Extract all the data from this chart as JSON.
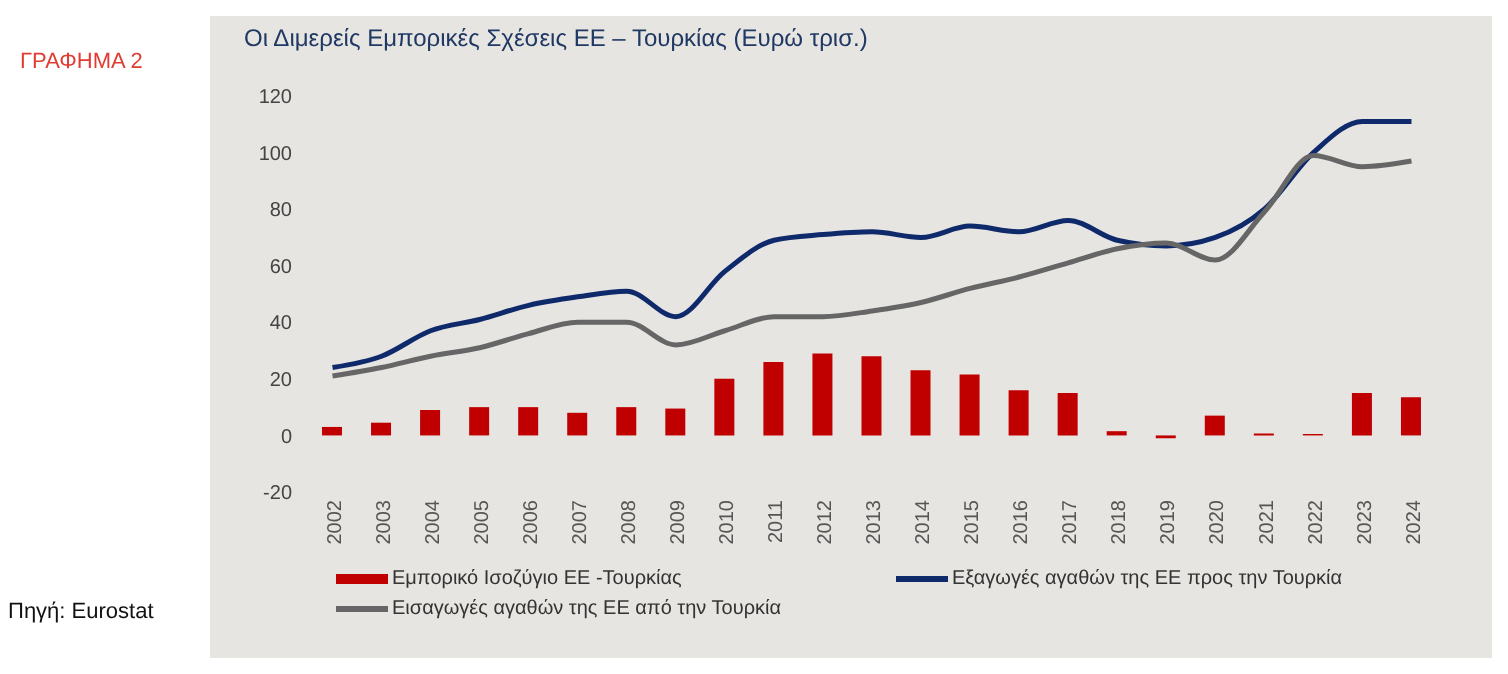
{
  "chart_data": {
    "type": "bar",
    "title": "Οι Διμερείς Εμπορικές Σχέσεις ΕΕ – Τουρκίας (Ευρώ τρισ.)",
    "annotations": [
      "ΓΡΑΦΗΜΑ 2",
      "Πηγή: Eurostat"
    ],
    "categories": [
      "2002",
      "2003",
      "2004",
      "2005",
      "2006",
      "2007",
      "2008",
      "2009",
      "2010",
      "2011",
      "2012",
      "2013",
      "2014",
      "2015",
      "2016",
      "2017",
      "2018",
      "2019",
      "2020",
      "2021",
      "2022",
      "2023",
      "2024"
    ],
    "series": [
      {
        "name": "Εμπορικό Ισοζύγιο ΕΕ -Τουρκίας",
        "color": "#c00000",
        "values": [
          3,
          4.5,
          9,
          10,
          10,
          8,
          10,
          9.5,
          20,
          26,
          29,
          28,
          23,
          21.5,
          16,
          15,
          1.5,
          -1,
          7,
          0.7,
          0.5,
          15,
          13.5
        ]
      },
      {
        "name": "Εξαγωγές αγαθών της ΕΕ προς την Τουρκία",
        "type": "line",
        "color": "#0f2a6b",
        "values": [
          24,
          28,
          37,
          41,
          46,
          49,
          51,
          42,
          58,
          69,
          71,
          72,
          70,
          74,
          72,
          76,
          69,
          67,
          70,
          80,
          100,
          111,
          111
        ]
      },
      {
        "name": "Εισαγωγές αγαθών της ΕΕ από την Τουρκία",
        "type": "line",
        "color": "#666666",
        "values": [
          21,
          24,
          28,
          31,
          36,
          40,
          40,
          32,
          37,
          42,
          42,
          44,
          47,
          52,
          56,
          61,
          66,
          68,
          62,
          79,
          99,
          95,
          97
        ]
      }
    ],
    "ylim": [
      -20,
      120
    ],
    "yticks": [
      -20,
      0,
      20,
      40,
      60,
      80,
      100,
      120
    ],
    "grid": false,
    "legend": "bottom",
    "marker": "none",
    "line_style": "solid"
  }
}
